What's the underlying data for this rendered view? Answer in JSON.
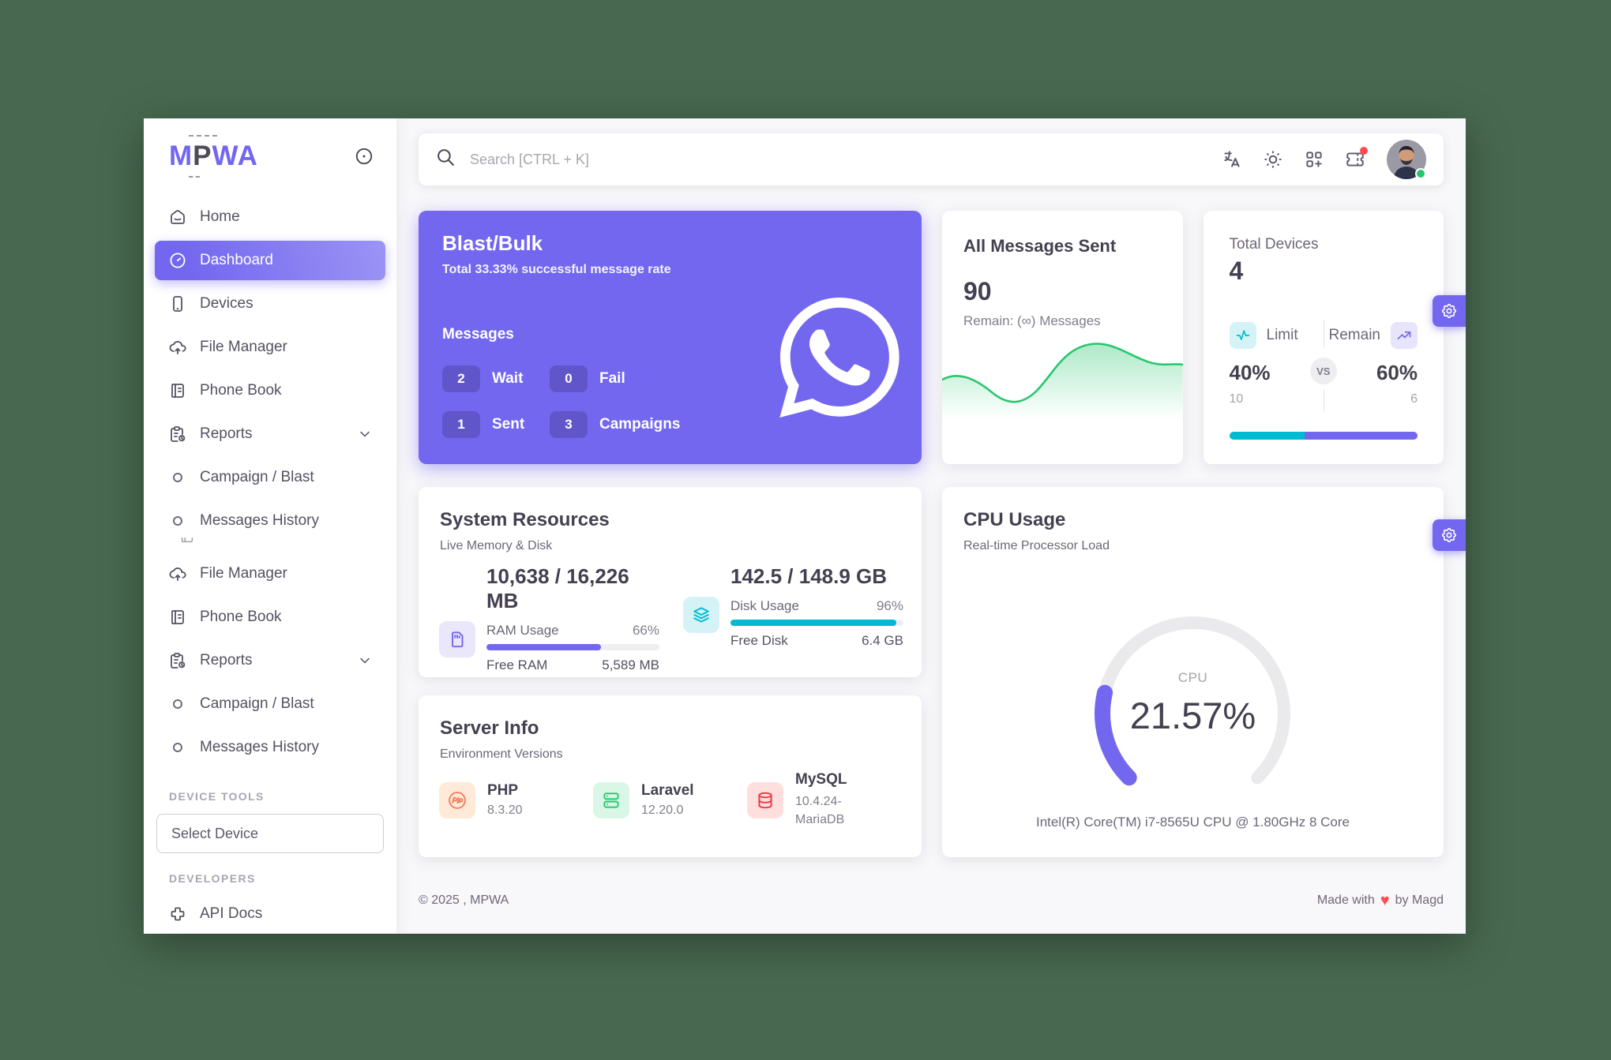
{
  "colors": {
    "primary": "#7367F0",
    "cyan": "#00BAD1",
    "success": "#28C76F",
    "danger": "#FF4C51",
    "orange": "#FF9F43",
    "heading": "#444050",
    "body_text": "#6d6777",
    "muted": "#a5a2ad",
    "content_bg": "#f8f7fa",
    "frame_bg": "#48694F"
  },
  "sidebar": {
    "logo": {
      "pre": "M",
      "mid": "P",
      "post": "WA"
    },
    "items": [
      {
        "label": "Home"
      },
      {
        "label": "Dashboard",
        "active": true
      },
      {
        "label": "Devices"
      },
      {
        "label": "File Manager"
      },
      {
        "label": "Phone Book"
      },
      {
        "label": "Reports"
      },
      {
        "label": "Campaign / Blast"
      },
      {
        "label": "Messages History"
      },
      {
        "label": "File Manager"
      },
      {
        "label": "Phone Book"
      },
      {
        "label": "Reports"
      },
      {
        "label": "Campaign / Blast"
      },
      {
        "label": "Messages History"
      }
    ],
    "device_tools_label": "DEVICE TOOLS",
    "select_device": "Select Device",
    "developers_label": "DEVELOPERS",
    "api_docs_label": "API Docs"
  },
  "navbar": {
    "search_placeholder": "Search [CTRL + K]",
    "icons": [
      "language-icon",
      "light-mode-icon",
      "apps-icon",
      "ticket-icon"
    ]
  },
  "cards": {
    "blast": {
      "title": "Blast/Bulk",
      "subtitle": "Total 33.33% successful message rate",
      "messages_label": "Messages",
      "stats": [
        {
          "value": "2",
          "label": "Wait"
        },
        {
          "value": "0",
          "label": "Fail"
        },
        {
          "value": "1",
          "label": "Sent"
        },
        {
          "value": "3",
          "label": "Campaigns"
        }
      ]
    },
    "messages": {
      "title": "All Messages Sent",
      "value": "90",
      "remain": "Remain: (∞) Messages"
    },
    "devices": {
      "title": "Total Devices",
      "value": "4",
      "limit_label": "Limit",
      "remain_label": "Remain",
      "vs_label": "VS",
      "limit_pct": "40%",
      "remain_pct": "60%",
      "limit_pct_num": 40,
      "remain_pct_num": 60,
      "limit_count": "10",
      "remain_count": "6"
    },
    "resources": {
      "title": "System Resources",
      "subtitle": "Live Memory & Disk",
      "ram": {
        "total": "10,638 / 16,226 MB",
        "usage_label": "RAM Usage",
        "usage_pct": "66%",
        "usage_pct_num": 66,
        "free_label": "Free RAM",
        "free_value": "5,589 MB"
      },
      "disk": {
        "total": "142.5 / 148.9 GB",
        "usage_label": "Disk Usage",
        "usage_pct": "96%",
        "usage_pct_num": 96,
        "free_label": "Free Disk",
        "free_value": "6.4 GB"
      }
    },
    "server": {
      "title": "Server Info",
      "subtitle": "Environment Versions",
      "items": [
        {
          "name": "PHP",
          "version": "8.3.20"
        },
        {
          "name": "Laravel",
          "version": "12.20.0"
        },
        {
          "name": "MySQL",
          "version": "10.4.24-MariaDB"
        }
      ]
    },
    "cpu": {
      "title": "CPU Usage",
      "subtitle": "Real-time Processor Load",
      "gauge_label": "CPU",
      "value": "21.57%",
      "percent": 21.57,
      "caption": "Intel(R) Core(TM) i7-8565U CPU @ 1.80GHz 8 Core"
    }
  },
  "footer": {
    "copyright": "© 2025 , MPWA",
    "made_prefix": "Made with",
    "made_suffix": "by Magd"
  },
  "chart_data": [
    {
      "type": "area",
      "title": "All Messages Sent sparkline",
      "x": [
        0,
        1,
        2,
        3,
        4,
        5,
        6,
        7
      ],
      "values": [
        50,
        55,
        30,
        45,
        85,
        88,
        70,
        68
      ],
      "color": "#28C76F",
      "grid": false,
      "legend_position": "none"
    },
    {
      "type": "gauge",
      "title": "CPU Usage",
      "value": 21.57,
      "min": 0,
      "max": 100,
      "label": "CPU",
      "color": "#7367F0",
      "track_color": "#eaeaec"
    },
    {
      "type": "bar",
      "title": "Device limit vs remain",
      "categories": [
        "Limit",
        "Remain"
      ],
      "values": [
        40,
        60
      ],
      "colors": [
        "#00BAD1",
        "#7367F0"
      ]
    }
  ]
}
